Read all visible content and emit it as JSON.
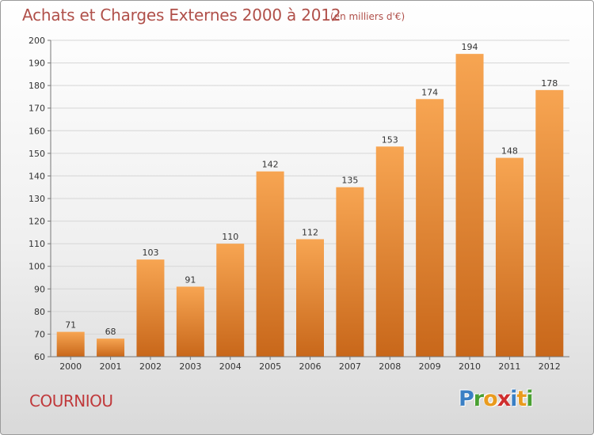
{
  "title": "Achats et Charges Externes 2000 à 2012",
  "subtitle": "(en milliers d'€)",
  "commune": "COURNIOU",
  "logo": {
    "letters": [
      "P",
      "r",
      "o",
      "x",
      "i",
      "t",
      "i"
    ],
    "colors": [
      "#3a7fc4",
      "#4aa033",
      "#e99b1e",
      "#cf2e2e",
      "#3a7fc4",
      "#e99b1e",
      "#4aa033"
    ]
  },
  "colors": {
    "bar_top": "#f7a552",
    "bar_bottom": "#c8671a",
    "axis": "#777777",
    "grid": "#d6d6d6"
  },
  "chart_data": {
    "type": "bar",
    "title": "Achats et Charges Externes 2000 à 2012",
    "subtitle": "(en milliers d'€)",
    "categories": [
      "2000",
      "2001",
      "2002",
      "2003",
      "2004",
      "2005",
      "2006",
      "2007",
      "2008",
      "2009",
      "2010",
      "2011",
      "2012"
    ],
    "values": [
      71,
      68,
      103,
      91,
      110,
      142,
      112,
      135,
      153,
      174,
      194,
      148,
      178
    ],
    "ylim": [
      60,
      200
    ],
    "yticks": [
      60,
      70,
      80,
      90,
      100,
      110,
      120,
      130,
      140,
      150,
      160,
      170,
      180,
      190,
      200
    ],
    "grid": true
  }
}
